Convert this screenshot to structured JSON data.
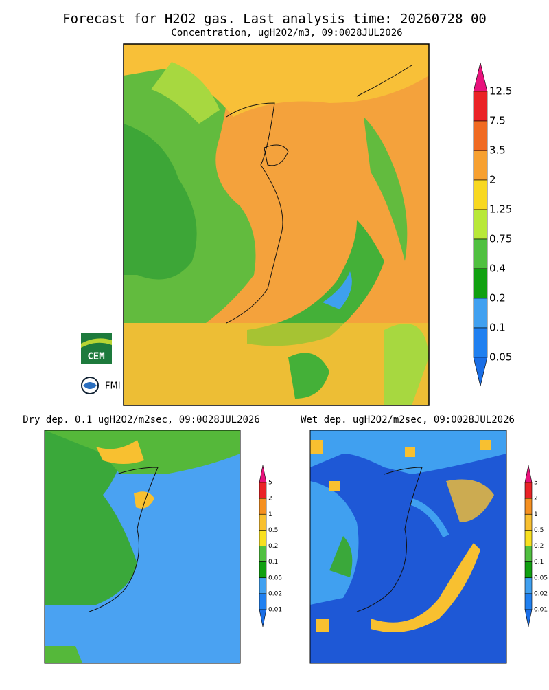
{
  "title": "Forecast for H2O2 gas. Last analysis time: 20260728 00",
  "subtitle": "Concentration, ugH2O2/m3, 09:0028JUL2026",
  "main_colorbar": {
    "levels": [
      12.5,
      7.5,
      3.5,
      2,
      1.25,
      0.75,
      0.4,
      0.2,
      0.1,
      0.05
    ],
    "colors": [
      "#e8127c",
      "#ea2226",
      "#f06a22",
      "#f7a030",
      "#f8d820",
      "#b8e838",
      "#50c040",
      "#10a010",
      "#40a0f0",
      "#2080f0",
      "#1a6ee6"
    ]
  },
  "panels": [
    {
      "title": "Dry dep. 0.1 ugH2O2/m2sec, 09:0028JUL2026",
      "colorbar": {
        "levels": [
          5,
          2,
          1,
          0.5,
          0.2,
          0.1,
          0.05,
          0.02,
          0.01
        ],
        "colors": [
          "#e8127c",
          "#ea2226",
          "#f59020",
          "#f8c030",
          "#f8e020",
          "#50c040",
          "#10a010",
          "#40a0f0",
          "#2080f0",
          "#1a6ee6"
        ]
      }
    },
    {
      "title": "Wet dep. ugH2O2/m2sec, 09:0028JUL2026",
      "colorbar": {
        "levels": [
          5,
          2,
          1,
          0.5,
          0.2,
          0.1,
          0.05,
          0.02,
          0.01
        ],
        "colors": [
          "#e8127c",
          "#ea2226",
          "#f59020",
          "#f8c030",
          "#f8e020",
          "#50c040",
          "#10a010",
          "#40a0f0",
          "#2080f0",
          "#1a6ee6"
        ]
      }
    }
  ],
  "logos": [
    "CEM",
    "FMI"
  ]
}
